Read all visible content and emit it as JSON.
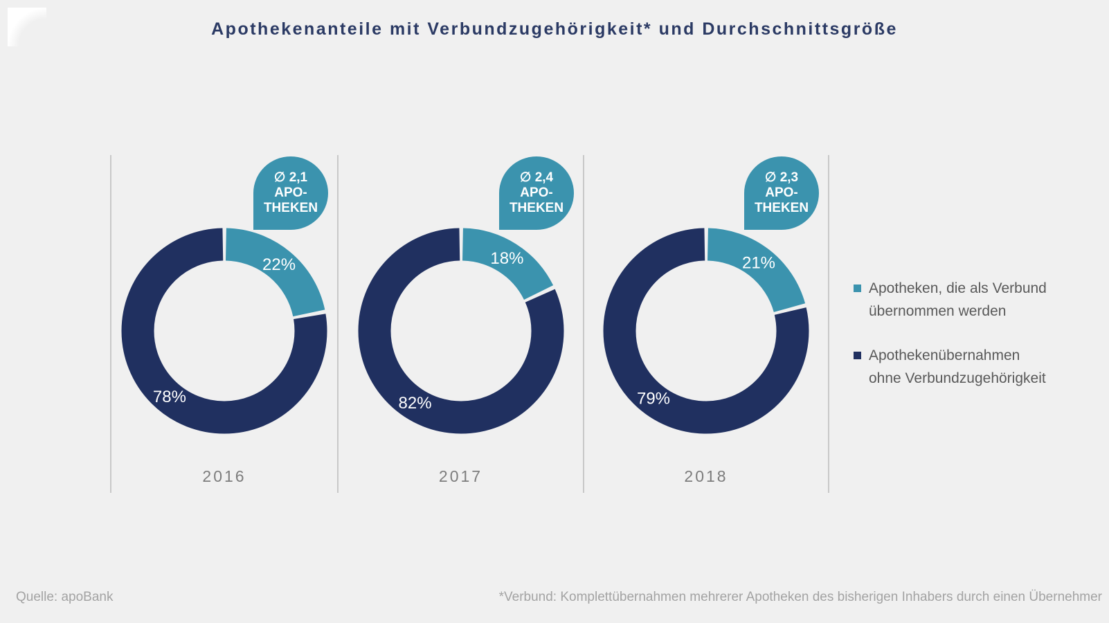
{
  "title": "Apothekenanteile mit Verbundzugehörigkeit* und Durchschnittsgröße",
  "colors": {
    "background": "#f0f0f0",
    "teal": "#3b93ae",
    "navy": "#203060",
    "divider": "#c8c8c8",
    "title_text": "#2b3a64",
    "legend_text": "#595959",
    "year_text": "#7c7c7c",
    "footer_text": "#a3a3a3",
    "slice_label_text": "#ffffff"
  },
  "icons": {
    "corner_logo": "white-page-corner-sail",
    "average_callout": "teardrop-speech-bubble",
    "diameter_sign": "∅"
  },
  "chart_data": {
    "type": "pie",
    "variant": "donut",
    "title": "Apothekenanteile mit Verbundzugehörigkeit* und Durchschnittsgröße",
    "categories": [
      "2016",
      "2017",
      "2018"
    ],
    "series": [
      {
        "name": "Apotheken, die als Verbund übernommen werden",
        "color": "#3b93ae",
        "values_pct": [
          22,
          18,
          21
        ]
      },
      {
        "name": "Apothekenübernahmen ohne Verbundzugehörigkeit",
        "color": "#203060",
        "values_pct": [
          78,
          82,
          79
        ]
      }
    ],
    "average_pharmacies_per_takeover": [
      2.1,
      2.4,
      2.3
    ],
    "callouts": [
      {
        "lines": [
          "∅ 2,1",
          "APO-",
          "THEKEN"
        ]
      },
      {
        "lines": [
          "∅ 2,4",
          "APO-",
          "THEKEN"
        ]
      },
      {
        "lines": [
          "∅ 2,3",
          "APO-",
          "THEKEN"
        ]
      }
    ],
    "slice_label_format": "{value}%",
    "start_angle": "12-o-clock, clockwise, Verbund slice first",
    "donut_hole_ratio": 0.69,
    "legend_position": "right",
    "grid": false
  },
  "legend": {
    "items": [
      {
        "lines": [
          "Apotheken, die als Verbund",
          "übernommen werden"
        ],
        "color": "#3b93ae"
      },
      {
        "lines": [
          "Apothekenübernahmen",
          "ohne Verbundzugehörigkeit"
        ],
        "color": "#203060"
      }
    ]
  },
  "footer": {
    "source": "Quelle: apoBank",
    "footnote": "*Verbund: Komplettübernahmen mehrerer Apotheken des bisherigen Inhabers durch einen Übernehmer"
  }
}
